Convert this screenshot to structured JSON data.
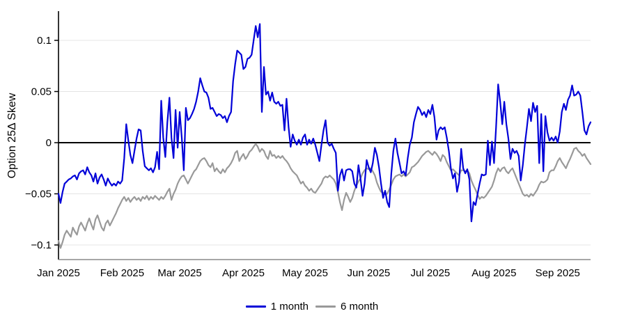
{
  "chart": {
    "y_axis_title": "Option 25Δ Skew"
  },
  "chart_data": {
    "type": "line",
    "title": "",
    "xlabel": "",
    "ylabel": "Option 25Δ Skew",
    "x_unit": "days since 2025-01-01 (one value per day)",
    "x_tick_labels": [
      "Jan 2025",
      "Feb 2025",
      "Mar 2025",
      "Apr 2025",
      "May 2025",
      "Jun 2025",
      "Jul 2025",
      "Aug 2025",
      "Sep 2025"
    ],
    "x_tick_day_offsets": [
      0,
      31,
      59,
      90,
      120,
      151,
      181,
      212,
      243
    ],
    "y_ticks": [
      0.1,
      0.05,
      0,
      -0.05,
      -0.1
    ],
    "y_tick_labels": [
      "0.1",
      "0.05",
      "0",
      "−0.05",
      "−0.1"
    ],
    "ylim": [
      -0.114,
      0.129
    ],
    "zero_line": true,
    "grid": true,
    "legend_position": "bottom-center",
    "colors": {
      "grid": "#e4e4e4",
      "zero_line": "#000000",
      "y_axis": "#000000",
      "x_axis": "#8a8a8a"
    },
    "series": [
      {
        "name": "1 month",
        "color": "#0000d8",
        "values": [
          -0.05,
          -0.059,
          -0.048,
          -0.04,
          -0.038,
          -0.036,
          -0.035,
          -0.033,
          -0.032,
          -0.036,
          -0.03,
          -0.028,
          -0.027,
          -0.031,
          -0.024,
          -0.029,
          -0.032,
          -0.038,
          -0.03,
          -0.04,
          -0.034,
          -0.031,
          -0.036,
          -0.042,
          -0.035,
          -0.039,
          -0.042,
          -0.04,
          -0.042,
          -0.038,
          -0.04,
          -0.037,
          -0.015,
          0.018,
          0.002,
          -0.012,
          -0.02,
          -0.008,
          0.004,
          0.013,
          0.012,
          -0.008,
          -0.023,
          -0.025,
          -0.027,
          -0.025,
          -0.029,
          -0.024,
          -0.009,
          -0.026,
          0.041,
          0.005,
          -0.014,
          0.02,
          0.044,
          0.005,
          -0.015,
          0.032,
          -0.005,
          0.03,
          0.005,
          -0.027,
          0.034,
          0.022,
          0.024,
          0.028,
          0.033,
          0.04,
          0.05,
          0.063,
          0.056,
          0.05,
          0.049,
          0.044,
          0.033,
          0.034,
          0.03,
          0.026,
          0.028,
          0.027,
          0.024,
          0.026,
          0.02,
          0.026,
          0.03,
          0.06,
          0.077,
          0.09,
          0.088,
          0.086,
          0.072,
          0.074,
          0.082,
          0.083,
          0.086,
          0.1,
          0.114,
          0.103,
          0.116,
          0.03,
          0.074,
          0.047,
          0.05,
          0.041,
          0.049,
          0.04,
          0.038,
          0.04,
          0.036,
          0.037,
          0.012,
          0.043,
          0.015,
          -0.004,
          0.008,
          0.002,
          -0.002,
          0.003,
          -0.002,
          0.005,
          0.008,
          -0.002,
          0.003,
          -0.001,
          0.004,
          -0.002,
          -0.01,
          -0.018,
          -0.002,
          0.012,
          0.022,
          0.0,
          -0.003,
          -0.001,
          -0.006,
          -0.01,
          -0.047,
          -0.032,
          -0.026,
          -0.037,
          -0.027,
          -0.026,
          -0.026,
          -0.028,
          -0.04,
          -0.044,
          -0.022,
          -0.035,
          -0.052,
          -0.04,
          -0.017,
          -0.024,
          -0.029,
          -0.02,
          -0.005,
          -0.012,
          -0.024,
          -0.04,
          -0.054,
          -0.047,
          -0.058,
          -0.063,
          -0.03,
          -0.008,
          0.004,
          -0.01,
          -0.02,
          -0.03,
          -0.028,
          -0.032,
          -0.015,
          -0.002,
          0.005,
          0.02,
          0.028,
          0.035,
          0.032,
          0.027,
          0.03,
          0.025,
          0.032,
          0.028,
          0.037,
          0.025,
          0.003,
          0.012,
          0.015,
          0.013,
          0.015,
          0.005,
          -0.008,
          -0.025,
          -0.035,
          -0.03,
          -0.048,
          -0.038,
          -0.006,
          -0.025,
          -0.03,
          -0.026,
          -0.036,
          -0.077,
          -0.058,
          -0.061,
          -0.05,
          -0.04,
          -0.031,
          -0.032,
          -0.031,
          0.002,
          -0.022,
          0.001,
          -0.02,
          0.015,
          0.057,
          0.04,
          0.018,
          0.04,
          0.018,
          0.004,
          -0.016,
          -0.006,
          -0.01,
          -0.008,
          -0.013,
          -0.037,
          -0.022,
          -0.002,
          0.015,
          0.033,
          0.021,
          0.039,
          0.03,
          0.036,
          -0.02,
          0.028,
          -0.028,
          0.026,
          0.01,
          0.002,
          0.005,
          0.002,
          0.006,
          0.0,
          0.011,
          0.03,
          0.038,
          0.032,
          0.042,
          0.046,
          0.056,
          0.046,
          0.047,
          0.05,
          0.046,
          0.03,
          0.012,
          0.008,
          0.016,
          0.02
        ]
      },
      {
        "name": "6 month",
        "color": "#999999",
        "values": [
          -0.096,
          -0.103,
          -0.097,
          -0.09,
          -0.086,
          -0.089,
          -0.092,
          -0.083,
          -0.087,
          -0.09,
          -0.082,
          -0.078,
          -0.082,
          -0.086,
          -0.079,
          -0.074,
          -0.08,
          -0.085,
          -0.075,
          -0.071,
          -0.077,
          -0.083,
          -0.086,
          -0.079,
          -0.076,
          -0.081,
          -0.077,
          -0.073,
          -0.069,
          -0.064,
          -0.06,
          -0.056,
          -0.053,
          -0.057,
          -0.054,
          -0.058,
          -0.055,
          -0.053,
          -0.056,
          -0.054,
          -0.057,
          -0.053,
          -0.055,
          -0.052,
          -0.056,
          -0.053,
          -0.055,
          -0.052,
          -0.054,
          -0.056,
          -0.053,
          -0.055,
          -0.052,
          -0.048,
          -0.045,
          -0.056,
          -0.05,
          -0.046,
          -0.04,
          -0.036,
          -0.033,
          -0.032,
          -0.036,
          -0.04,
          -0.036,
          -0.032,
          -0.028,
          -0.026,
          -0.022,
          -0.018,
          -0.016,
          -0.015,
          -0.018,
          -0.022,
          -0.024,
          -0.02,
          -0.028,
          -0.025,
          -0.028,
          -0.03,
          -0.026,
          -0.029,
          -0.025,
          -0.023,
          -0.02,
          -0.016,
          -0.01,
          -0.008,
          -0.018,
          -0.014,
          -0.011,
          -0.016,
          -0.013,
          -0.009,
          -0.007,
          -0.004,
          -0.001,
          -0.004,
          -0.009,
          -0.006,
          -0.008,
          -0.013,
          -0.016,
          -0.008,
          -0.013,
          -0.012,
          -0.015,
          -0.013,
          -0.015,
          -0.013,
          -0.016,
          -0.018,
          -0.021,
          -0.025,
          -0.028,
          -0.03,
          -0.032,
          -0.036,
          -0.04,
          -0.038,
          -0.042,
          -0.044,
          -0.047,
          -0.045,
          -0.048,
          -0.049,
          -0.046,
          -0.043,
          -0.04,
          -0.035,
          -0.033,
          -0.034,
          -0.032,
          -0.034,
          -0.036,
          -0.04,
          -0.048,
          -0.058,
          -0.066,
          -0.056,
          -0.049,
          -0.053,
          -0.058,
          -0.054,
          -0.047,
          -0.042,
          -0.038,
          -0.035,
          -0.03,
          -0.027,
          -0.025,
          -0.026,
          -0.025,
          -0.028,
          -0.032,
          -0.039,
          -0.044,
          -0.048,
          -0.049,
          -0.05,
          -0.05,
          -0.046,
          -0.041,
          -0.036,
          -0.033,
          -0.032,
          -0.031,
          -0.033,
          -0.031,
          -0.033,
          -0.031,
          -0.029,
          -0.024,
          -0.023,
          -0.021,
          -0.019,
          -0.016,
          -0.013,
          -0.011,
          -0.009,
          -0.008,
          -0.01,
          -0.012,
          -0.009,
          -0.011,
          -0.014,
          -0.018,
          -0.012,
          -0.014,
          -0.019,
          -0.023,
          -0.027,
          -0.026,
          -0.028,
          -0.03,
          -0.032,
          -0.027,
          -0.027,
          -0.028,
          -0.027,
          -0.03,
          -0.037,
          -0.042,
          -0.046,
          -0.051,
          -0.055,
          -0.053,
          -0.054,
          -0.052,
          -0.049,
          -0.046,
          -0.043,
          -0.037,
          -0.03,
          -0.025,
          -0.028,
          -0.025,
          -0.024,
          -0.028,
          -0.03,
          -0.027,
          -0.025,
          -0.03,
          -0.035,
          -0.04,
          -0.045,
          -0.05,
          -0.052,
          -0.051,
          -0.053,
          -0.05,
          -0.052,
          -0.049,
          -0.046,
          -0.041,
          -0.038,
          -0.039,
          -0.038,
          -0.036,
          -0.029,
          -0.027,
          -0.027,
          -0.023,
          -0.018,
          -0.015,
          -0.019,
          -0.022,
          -0.025,
          -0.02,
          -0.016,
          -0.011,
          -0.006,
          -0.005,
          -0.008,
          -0.01,
          -0.013,
          -0.011,
          -0.015,
          -0.018,
          -0.021
        ]
      }
    ]
  }
}
